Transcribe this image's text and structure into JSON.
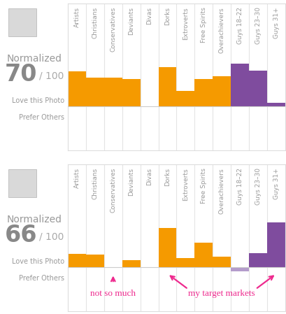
{
  "chart_data": [
    {
      "type": "bar",
      "label": "Normalized",
      "score": 70,
      "out_of": "/ 100",
      "love_label": "Love this Photo",
      "prefer_label": "Prefer Others",
      "categories": [
        "Artists",
        "Christians",
        "Conservatives",
        "Deviants",
        "Divas",
        "Dorks",
        "Extroverts",
        "Free Spirits",
        "Overachievers",
        "Guys 18–22",
        "Guys 23–30",
        "Guys 31+"
      ],
      "values": [
        50,
        41,
        41,
        39,
        0,
        56,
        22,
        39,
        43,
        61,
        51,
        5
      ],
      "colors": [
        "#f59a00",
        "#f59a00",
        "#f59a00",
        "#f59a00",
        "#f59a00",
        "#f59a00",
        "#f59a00",
        "#f59a00",
        "#f59a00",
        "#7f4c9e",
        "#7f4c9e",
        "#7f4c9e"
      ],
      "ylim": [
        -63,
        147
      ],
      "tick_labels": false
    },
    {
      "type": "bar",
      "label": "Normalized",
      "score": 66,
      "out_of": "/ 100",
      "love_label": "Love this Photo",
      "prefer_label": "Prefer Others",
      "categories": [
        "Artists",
        "Christians",
        "Conservatives",
        "Deviants",
        "Divas",
        "Dorks",
        "Extroverts",
        "Free Spirits",
        "Overachievers",
        "Guys 18–22",
        "Guys 23–30",
        "Guys 31+"
      ],
      "values": [
        19,
        18,
        0,
        10,
        0,
        56,
        13,
        35,
        15,
        -6,
        20,
        64
      ],
      "colors": [
        "#f59a00",
        "#f59a00",
        "#f59a00",
        "#f59a00",
        "#f59a00",
        "#f59a00",
        "#f59a00",
        "#f59a00",
        "#f59a00",
        "#b49ccb",
        "#7f4c9e",
        "#7f4c9e"
      ],
      "ylim": [
        -63,
        147
      ],
      "tick_labels": false,
      "annotations": [
        {
          "text": "not so much",
          "points_to": [
            "Conservatives"
          ]
        },
        {
          "text": "my target markets",
          "points_to": [
            "Dorks",
            "Guys 31+"
          ]
        }
      ]
    }
  ]
}
